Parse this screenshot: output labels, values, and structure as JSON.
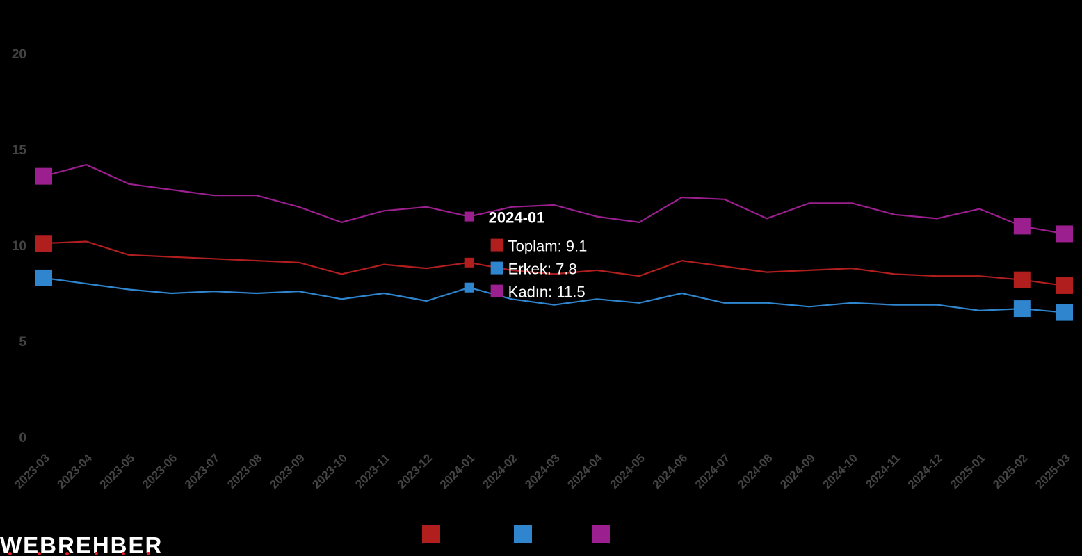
{
  "chart_data": {
    "type": "line",
    "x": [
      "2023-03",
      "2023-04",
      "2023-05",
      "2023-06",
      "2023-07",
      "2023-08",
      "2023-09",
      "2023-10",
      "2023-11",
      "2023-12",
      "2024-01",
      "2024-02",
      "2024-03",
      "2024-04",
      "2024-05",
      "2024-06",
      "2024-07",
      "2024-08",
      "2024-09",
      "2024-10",
      "2024-11",
      "2024-12",
      "2025-01",
      "2025-02",
      "2025-03"
    ],
    "series": [
      {
        "name": "Toplam",
        "color": "#b01e1e",
        "values": [
          10.1,
          10.2,
          9.5,
          9.4,
          9.3,
          9.2,
          9.1,
          8.5,
          9.0,
          8.8,
          9.1,
          8.7,
          8.5,
          8.7,
          8.4,
          9.2,
          8.9,
          8.6,
          8.7,
          8.8,
          8.5,
          8.4,
          8.4,
          8.2,
          7.9
        ]
      },
      {
        "name": "Erkek",
        "color": "#2f86cf",
        "values": [
          8.3,
          8.0,
          7.7,
          7.5,
          7.6,
          7.5,
          7.6,
          7.2,
          7.5,
          7.1,
          7.8,
          7.2,
          6.9,
          7.2,
          7.0,
          7.5,
          7.0,
          7.0,
          6.8,
          7.0,
          6.9,
          6.9,
          6.6,
          6.7,
          6.5
        ]
      },
      {
        "name": "Kadın",
        "color": "#9b1f8e",
        "values": [
          13.6,
          14.2,
          13.2,
          12.9,
          12.6,
          12.6,
          12.0,
          11.2,
          11.8,
          12.0,
          11.5,
          12.0,
          12.1,
          11.5,
          11.2,
          12.5,
          12.4,
          11.4,
          12.2,
          12.2,
          11.6,
          11.4,
          11.9,
          11.0,
          10.6
        ]
      }
    ],
    "yticks": [
      0,
      5,
      10,
      15,
      20
    ],
    "ylim": [
      0,
      20
    ],
    "legend_position": "bottom",
    "highlighted_index": 10,
    "tooltip": {
      "title": "2024-01",
      "lines": [
        "Toplam: 9.1",
        "Erkek: 7.8",
        "Kadın: 11.5"
      ]
    }
  },
  "brand": {
    "logo_text": "WEBREHBER",
    "accent_color": "#e01b24"
  }
}
